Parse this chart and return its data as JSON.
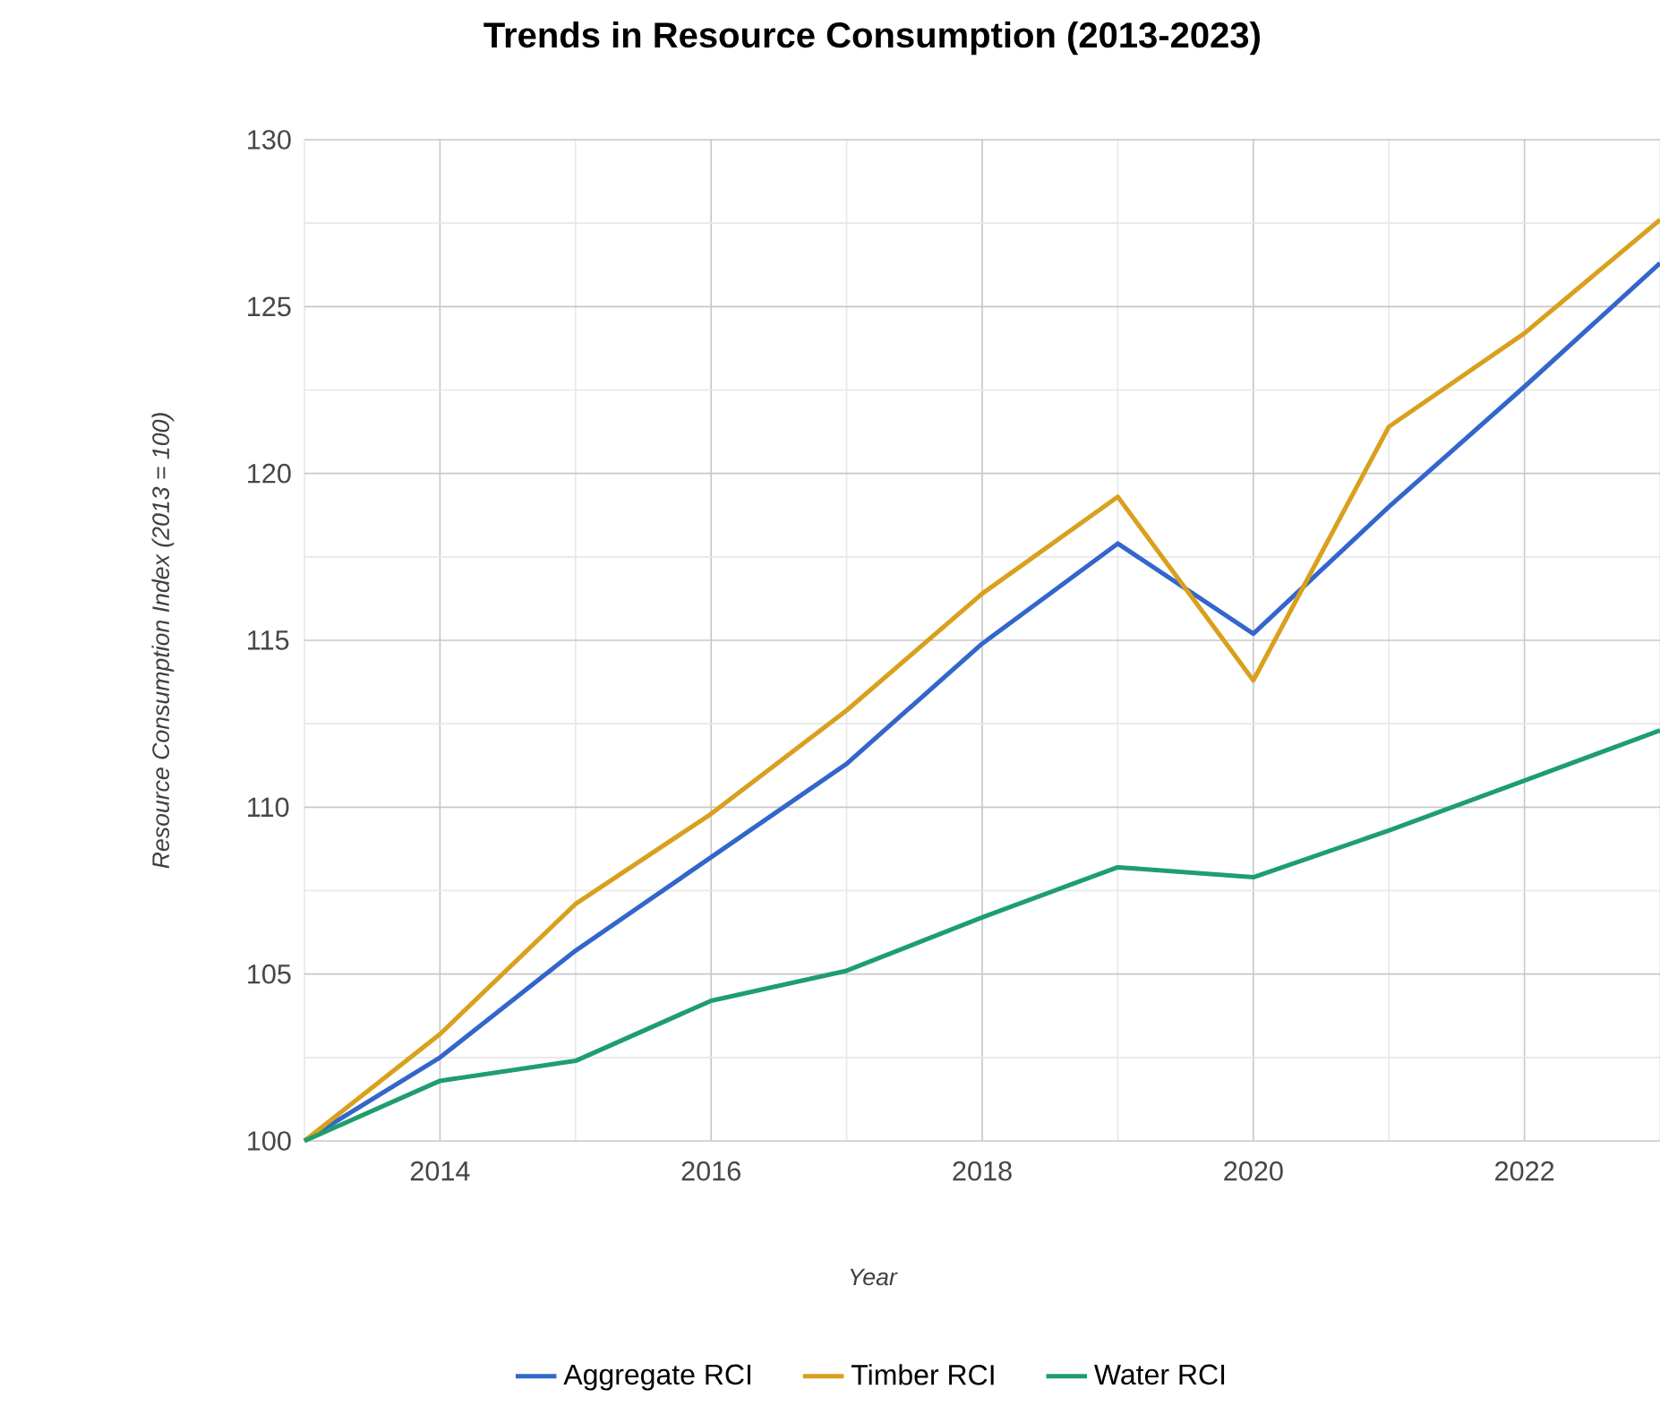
{
  "chart_data": {
    "type": "line",
    "title": "Trends in Resource Consumption (2013-2023)",
    "xlabel": "Year",
    "ylabel": "Resource Consumption Index (2013 = 100)",
    "x": [
      2013,
      2014,
      2015,
      2016,
      2017,
      2018,
      2019,
      2020,
      2021,
      2022,
      2023
    ],
    "series": [
      {
        "name": "Aggregate RCI",
        "color": "#3366cc",
        "values": [
          100,
          102.5,
          105.7,
          108.5,
          111.3,
          114.9,
          117.9,
          115.2,
          119.0,
          122.6,
          126.3
        ]
      },
      {
        "name": "Timber RCI",
        "color": "#d9a01e",
        "values": [
          100,
          103.2,
          107.1,
          109.8,
          112.9,
          116.4,
          119.3,
          113.8,
          121.4,
          124.2,
          127.6
        ]
      },
      {
        "name": "Water RCI",
        "color": "#1e9e6e",
        "values": [
          100,
          101.8,
          102.4,
          104.2,
          105.1,
          106.7,
          108.2,
          107.9,
          109.3,
          110.8,
          112.3
        ]
      }
    ],
    "xlim": [
      2013,
      2023
    ],
    "xticks": [
      {
        "value": 2013,
        "label": null
      },
      2014,
      {
        "value": 2015,
        "label": null
      },
      2016,
      {
        "value": 2017,
        "label": null
      },
      2018,
      {
        "value": 2019,
        "label": null
      },
      2020,
      {
        "value": 2021,
        "label": null
      },
      2022,
      {
        "value": 2023,
        "label": null
      }
    ],
    "ylim": [
      100,
      130
    ],
    "yticks": [
      100,
      {
        "value": 102.5,
        "label": null
      },
      105,
      {
        "value": 107.5,
        "label": null
      },
      110,
      {
        "value": 112.5,
        "label": null
      },
      115,
      {
        "value": 117.5,
        "label": null
      },
      120,
      {
        "value": 122.5,
        "label": null
      },
      125,
      {
        "value": 127.5,
        "label": null
      },
      130
    ],
    "grid": true,
    "legend": "bottom",
    "marker": "none",
    "line_style": "solid"
  }
}
